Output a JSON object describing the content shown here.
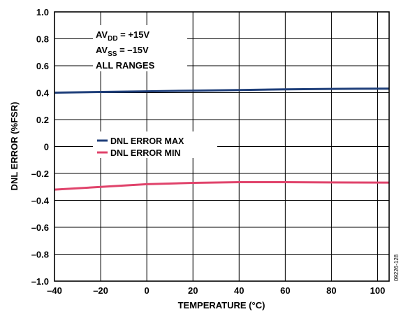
{
  "chart_data": {
    "type": "line",
    "x": [
      -40,
      -20,
      0,
      20,
      40,
      60,
      80,
      105
    ],
    "series": [
      {
        "name": "DNL ERROR MAX",
        "color": "#1f3f7a",
        "values": [
          0.4,
          0.405,
          0.41,
          0.415,
          0.42,
          0.425,
          0.428,
          0.43
        ]
      },
      {
        "name": "DNL ERROR MIN",
        "color": "#e0436b",
        "values": [
          -0.32,
          -0.3,
          -0.28,
          -0.27,
          -0.265,
          -0.265,
          -0.267,
          -0.268
        ]
      }
    ],
    "xlabel": "TEMPERATURE (°C)",
    "ylabel": "DNL ERROR (%FSR)",
    "xlim": [
      -40,
      105
    ],
    "ylim": [
      -1.0,
      1.0
    ],
    "xticks": [
      -40,
      -20,
      0,
      20,
      40,
      60,
      80,
      100
    ],
    "xtick_labels": [
      "–40",
      "–20",
      "0",
      "20",
      "40",
      "60",
      "80",
      "100"
    ],
    "yticks": [
      -1.0,
      -0.8,
      -0.6,
      -0.4,
      -0.2,
      0,
      0.2,
      0.4,
      0.6,
      0.8,
      1.0
    ],
    "ytick_labels": [
      "–1.0",
      "–0.8",
      "–0.6",
      "–0.4",
      "–0.2",
      "0",
      "0.2",
      "0.4",
      "0.6",
      "0.8",
      "1.0"
    ],
    "grid": true,
    "legend_position": "center-left",
    "annotations": {
      "line1_main": "AV",
      "line1_sub": "DD",
      "line1_rest": " = +15V",
      "line2_main": "AV",
      "line2_sub": "SS",
      "line2_rest": " = –15V",
      "line3": "ALL RANGES"
    },
    "figure_id": "09226-128"
  }
}
